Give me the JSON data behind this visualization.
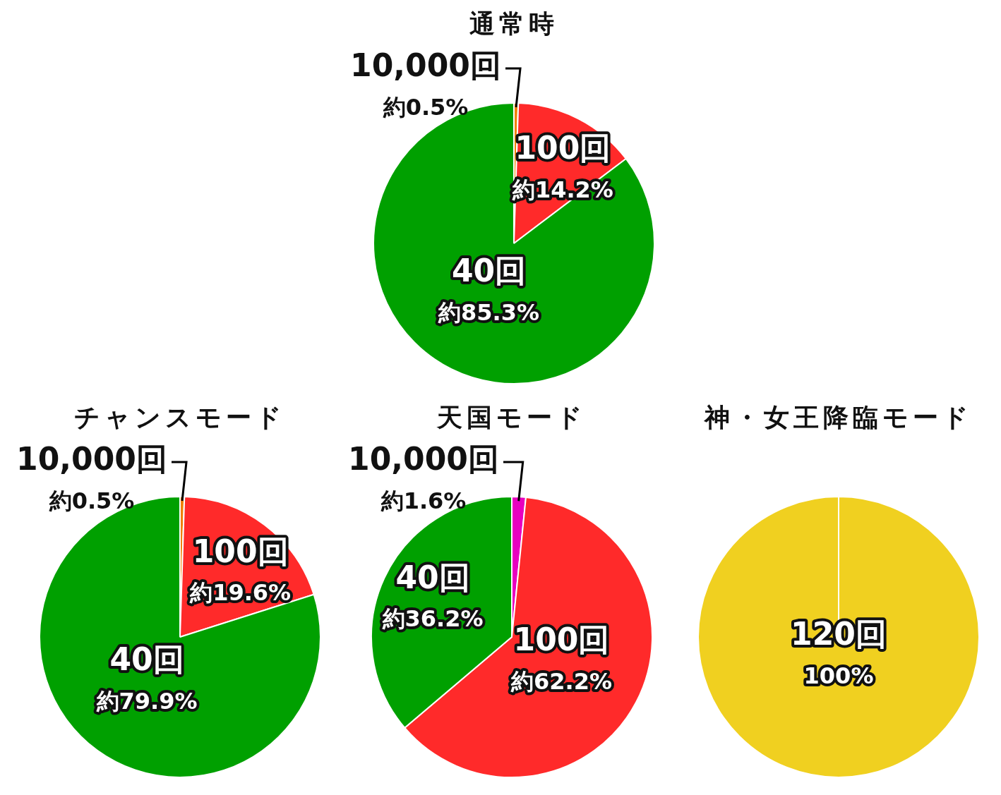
{
  "chart_data": [
    {
      "type": "pie",
      "title": "通常時",
      "categories": [
        "10,000回",
        "100回",
        "40回"
      ],
      "values": [
        0.5,
        14.2,
        85.3
      ],
      "colors": [
        "#f08000",
        "#ff2a2a",
        "#00a000"
      ],
      "value_labels": [
        "約0.5%",
        "約14.2%",
        "約85.3%"
      ]
    },
    {
      "type": "pie",
      "title": "チャンスモード",
      "categories": [
        "10,000回",
        "100回",
        "40回"
      ],
      "values": [
        0.5,
        19.6,
        79.9
      ],
      "colors": [
        "#f08000",
        "#ff2a2a",
        "#00a000"
      ],
      "value_labels": [
        "約0.5%",
        "約19.6%",
        "約79.9%"
      ]
    },
    {
      "type": "pie",
      "title": "天国モード",
      "categories": [
        "10,000回",
        "100回",
        "40回"
      ],
      "values": [
        1.6,
        62.2,
        36.2
      ],
      "colors": [
        "#e800c0",
        "#ff2a2a",
        "#00a000"
      ],
      "value_labels": [
        "約1.6%",
        "約62.2%",
        "約36.2%"
      ]
    },
    {
      "type": "pie",
      "title": "神・女王降臨モード",
      "categories": [
        "120回"
      ],
      "values": [
        100
      ],
      "colors": [
        "#f0d020"
      ],
      "value_labels": [
        "100%"
      ]
    }
  ]
}
